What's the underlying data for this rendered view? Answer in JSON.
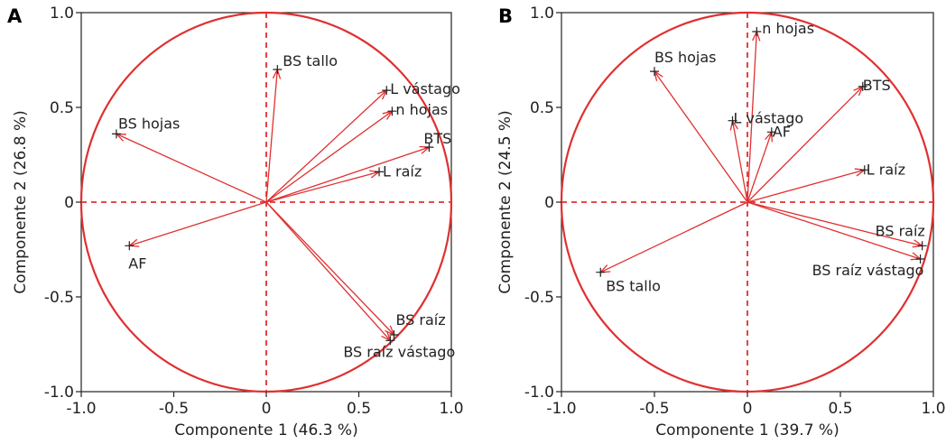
{
  "figure": {
    "colors": {
      "accent": "#e03030",
      "frame": "#222222",
      "text": "#222222"
    }
  },
  "chart_data": [
    {
      "type": "scatter",
      "panel": "A",
      "title": "",
      "xlabel": "Componente 1 (46.3 %)",
      "ylabel": "Componente 2 (26.8 %)",
      "xlim": [
        -1.0,
        1.0
      ],
      "ylim": [
        -1.0,
        1.0
      ],
      "xticks": [
        "-1.0",
        "-0.5",
        "0",
        "0.5",
        "1.0"
      ],
      "yticks": [
        "-1.0",
        "-0.5",
        "0",
        "0.5",
        "1.0"
      ],
      "unit_circle": true,
      "reference_lines": [
        0,
        0
      ],
      "vectors": [
        {
          "name": "BS tallo",
          "x": 0.06,
          "y": 0.7
        },
        {
          "name": "L vástago",
          "x": 0.65,
          "y": 0.59
        },
        {
          "name": "n hojas",
          "x": 0.68,
          "y": 0.48
        },
        {
          "name": "BS hojas",
          "x": -0.81,
          "y": 0.36
        },
        {
          "name": "BTS",
          "x": 0.88,
          "y": 0.29
        },
        {
          "name": "L raíz",
          "x": 0.61,
          "y": 0.16
        },
        {
          "name": "AF",
          "x": -0.74,
          "y": -0.23
        },
        {
          "name": "BS raíz",
          "x": 0.69,
          "y": -0.7
        },
        {
          "name": "BS raíz vástago",
          "x": 0.67,
          "y": -0.73
        }
      ]
    },
    {
      "type": "scatter",
      "panel": "B",
      "title": "",
      "xlabel": "Componente 1 (39.7 %)",
      "ylabel": "Componente 2 (24.5 %)",
      "xlim": [
        -1.0,
        1.0
      ],
      "ylim": [
        -1.0,
        1.0
      ],
      "xticks": [
        "-1.0",
        "-0.5",
        "0",
        "0.5",
        "1.0"
      ],
      "yticks": [
        "-1.0",
        "-0.5",
        "0",
        "0.5",
        "1.0"
      ],
      "unit_circle": true,
      "reference_lines": [
        0,
        0
      ],
      "vectors": [
        {
          "name": "n hojas",
          "x": 0.05,
          "y": 0.9
        },
        {
          "name": "BS hojas",
          "x": -0.5,
          "y": 0.69
        },
        {
          "name": "BTS",
          "x": 0.62,
          "y": 0.61
        },
        {
          "name": "L vástago",
          "x": -0.08,
          "y": 0.43
        },
        {
          "name": "AF",
          "x": 0.13,
          "y": 0.37
        },
        {
          "name": "L raíz",
          "x": 0.63,
          "y": 0.17
        },
        {
          "name": "BS raíz",
          "x": 0.94,
          "y": -0.23
        },
        {
          "name": "BS raíz vástago",
          "x": 0.93,
          "y": -0.3
        },
        {
          "name": "BS tallo",
          "x": -0.79,
          "y": -0.37
        }
      ]
    }
  ]
}
